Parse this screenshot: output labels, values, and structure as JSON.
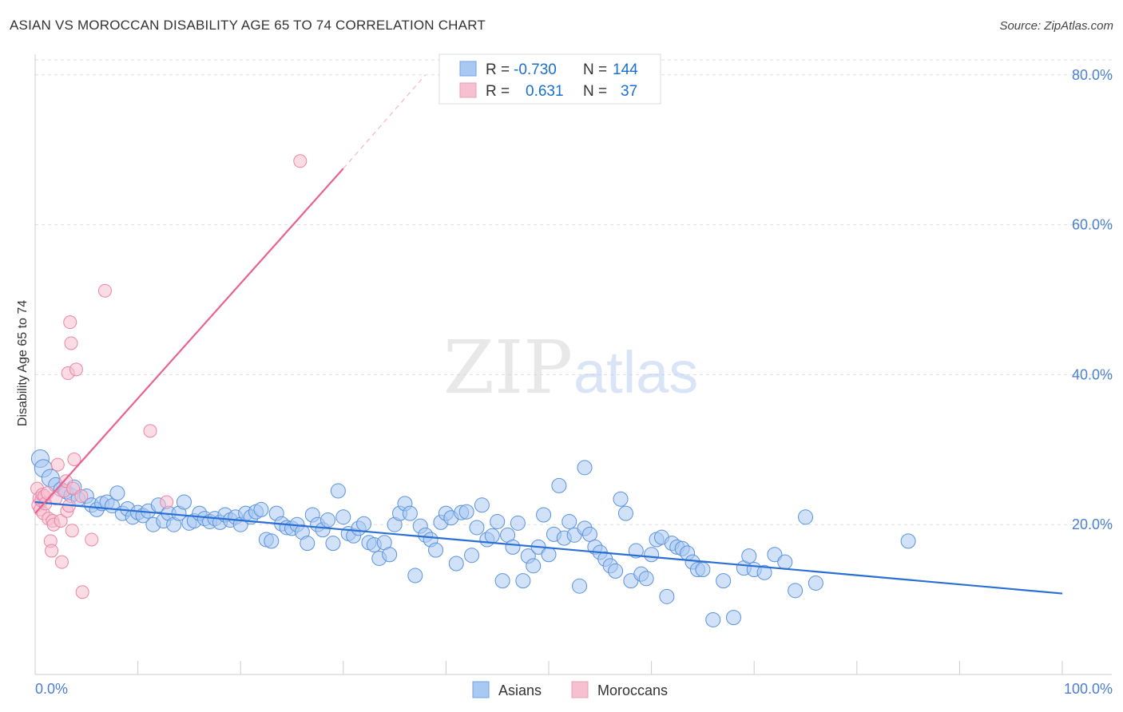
{
  "title": "ASIAN VS MOROCCAN DISABILITY AGE 65 TO 74 CORRELATION CHART",
  "source": "Source: ZipAtlas.com",
  "watermark": {
    "zip": "ZIP",
    "atlas": "atlas"
  },
  "legend_box": {
    "rows": [
      {
        "r_label": "R =",
        "r_value": "-0.730",
        "n_label": "N =",
        "n_value": "144",
        "color": "#6fa3e8"
      },
      {
        "r_label": "R =",
        "r_value": "0.631",
        "n_label": "N =",
        "n_value": "37",
        "color": "#f09bb5"
      }
    ]
  },
  "bottom_legend": [
    {
      "label": "Asians",
      "color": "#6fa3e8"
    },
    {
      "label": "Moroccans",
      "color": "#f09bb5"
    }
  ],
  "colors": {
    "asian_fill": "#a9c8f2",
    "asian_stroke": "#5b93dd",
    "asian_line": "#2a6fd4",
    "moroccan_fill": "#f7c0d0",
    "moroccan_stroke": "#ea86a6",
    "moroccan_line": "#e8638f",
    "grid": "#dddddd",
    "axis_label": "#4a7fd1"
  },
  "chart_data": {
    "type": "scatter",
    "title": "ASIAN VS MOROCCAN DISABILITY AGE 65 TO 74 CORRELATION CHART",
    "xlabel": "",
    "ylabel": "Disability Age 65 to 74",
    "xlim": [
      0,
      100
    ],
    "ylim": [
      0,
      82
    ],
    "x_tick_labels": [
      "0.0%",
      "100.0%"
    ],
    "y_ticks": [
      20,
      40,
      60,
      80
    ],
    "y_tick_labels": [
      "20.0%",
      "40.0%",
      "60.0%",
      "80.0%"
    ],
    "grid": true,
    "legend_position": "top-center",
    "series": [
      {
        "name": "Asians",
        "R": -0.73,
        "N": 144,
        "trend": {
          "x": [
            0,
            100
          ],
          "y": [
            23.0,
            10.8
          ]
        },
        "points": [
          [
            0.5,
            28.8
          ],
          [
            0.8,
            27.5
          ],
          [
            1.5,
            26.2
          ],
          [
            2.0,
            25.3
          ],
          [
            2.5,
            24.7
          ],
          [
            3.0,
            24.4
          ],
          [
            3.5,
            23.9
          ],
          [
            4.2,
            23.4
          ],
          [
            5.0,
            23.8
          ],
          [
            5.5,
            22.6
          ],
          [
            6.0,
            22.0
          ],
          [
            6.5,
            22.8
          ],
          [
            7.0,
            23.0
          ],
          [
            7.5,
            22.5
          ],
          [
            8.0,
            24.2
          ],
          [
            8.5,
            21.5
          ],
          [
            9.0,
            22.1
          ],
          [
            9.5,
            21.0
          ],
          [
            10.0,
            21.6
          ],
          [
            10.5,
            21.2
          ],
          [
            11.0,
            21.8
          ],
          [
            11.5,
            20.0
          ],
          [
            12.0,
            22.6
          ],
          [
            12.5,
            20.5
          ],
          [
            13.0,
            21.5
          ],
          [
            13.5,
            20.0
          ],
          [
            14.0,
            21.5
          ],
          [
            14.5,
            23.0
          ],
          [
            15.0,
            20.2
          ],
          [
            15.5,
            20.5
          ],
          [
            16.0,
            21.5
          ],
          [
            16.5,
            20.8
          ],
          [
            17.0,
            20.4
          ],
          [
            17.5,
            20.8
          ],
          [
            18.0,
            20.3
          ],
          [
            18.5,
            21.3
          ],
          [
            19.0,
            20.6
          ],
          [
            19.5,
            21.0
          ],
          [
            20.0,
            20.0
          ],
          [
            20.5,
            21.5
          ],
          [
            21.0,
            21.0
          ],
          [
            21.5,
            21.7
          ],
          [
            22.0,
            22.0
          ],
          [
            22.5,
            18.0
          ],
          [
            23.0,
            17.8
          ],
          [
            23.5,
            21.5
          ],
          [
            24.0,
            20.1
          ],
          [
            24.5,
            19.6
          ],
          [
            25.0,
            19.5
          ],
          [
            25.5,
            20.0
          ],
          [
            26.0,
            19.0
          ],
          [
            26.5,
            17.5
          ],
          [
            27.0,
            21.3
          ],
          [
            27.5,
            20.0
          ],
          [
            28.0,
            19.3
          ],
          [
            28.5,
            20.6
          ],
          [
            29.0,
            17.5
          ],
          [
            29.5,
            24.5
          ],
          [
            30.0,
            21.0
          ],
          [
            30.5,
            18.8
          ],
          [
            31.0,
            18.5
          ],
          [
            31.5,
            19.5
          ],
          [
            32.0,
            20.1
          ],
          [
            32.5,
            17.6
          ],
          [
            33.0,
            17.3
          ],
          [
            33.5,
            15.5
          ],
          [
            34.0,
            17.6
          ],
          [
            34.5,
            16.0
          ],
          [
            35.0,
            20.0
          ],
          [
            35.5,
            21.5
          ],
          [
            36.0,
            22.8
          ],
          [
            36.5,
            21.5
          ],
          [
            37.0,
            13.2
          ],
          [
            37.5,
            19.8
          ],
          [
            38.0,
            18.6
          ],
          [
            38.5,
            18.0
          ],
          [
            39.0,
            16.6
          ],
          [
            39.5,
            20.3
          ],
          [
            40.0,
            21.5
          ],
          [
            40.5,
            20.9
          ],
          [
            41.0,
            14.8
          ],
          [
            41.5,
            21.6
          ],
          [
            42.0,
            21.7
          ],
          [
            42.5,
            15.9
          ],
          [
            43.0,
            19.6
          ],
          [
            43.5,
            22.6
          ],
          [
            44.0,
            18.0
          ],
          [
            44.5,
            18.5
          ],
          [
            45.0,
            20.4
          ],
          [
            45.5,
            12.5
          ],
          [
            46.0,
            18.6
          ],
          [
            46.5,
            17.0
          ],
          [
            47.0,
            20.2
          ],
          [
            47.5,
            12.5
          ],
          [
            48.0,
            15.8
          ],
          [
            48.5,
            14.5
          ],
          [
            49.0,
            17.0
          ],
          [
            49.5,
            21.3
          ],
          [
            50.0,
            16.0
          ],
          [
            50.5,
            18.7
          ],
          [
            51.0,
            25.2
          ],
          [
            51.5,
            18.2
          ],
          [
            52.0,
            20.4
          ],
          [
            52.5,
            18.6
          ],
          [
            53.0,
            11.8
          ],
          [
            53.5,
            19.5
          ],
          [
            54.0,
            18.7
          ],
          [
            54.5,
            17.0
          ],
          [
            55.0,
            16.3
          ],
          [
            55.5,
            15.4
          ],
          [
            56.0,
            14.5
          ],
          [
            56.5,
            13.8
          ],
          [
            57.0,
            23.4
          ],
          [
            57.5,
            21.5
          ],
          [
            58.0,
            12.5
          ],
          [
            58.5,
            16.5
          ],
          [
            59.0,
            13.4
          ],
          [
            59.5,
            12.8
          ],
          [
            60.0,
            16.0
          ],
          [
            60.5,
            18.0
          ],
          [
            61.0,
            18.3
          ],
          [
            61.5,
            10.4
          ],
          [
            62.0,
            17.5
          ],
          [
            62.5,
            17.0
          ],
          [
            63.0,
            16.8
          ],
          [
            63.5,
            16.2
          ],
          [
            64.0,
            15.0
          ],
          [
            64.5,
            14.0
          ],
          [
            65.0,
            14.0
          ],
          [
            66.0,
            7.3
          ],
          [
            67.0,
            12.5
          ],
          [
            68.0,
            7.6
          ],
          [
            69.0,
            14.2
          ],
          [
            69.5,
            15.8
          ],
          [
            70.0,
            14.0
          ],
          [
            71.0,
            13.6
          ],
          [
            72.0,
            16.0
          ],
          [
            73.0,
            15.0
          ],
          [
            74.0,
            11.2
          ],
          [
            75.0,
            21.0
          ],
          [
            76.0,
            12.2
          ],
          [
            85.0,
            17.8
          ],
          [
            53.5,
            27.6
          ],
          [
            3.8,
            25.0
          ]
        ]
      },
      {
        "name": "Moroccans",
        "R": 0.631,
        "N": 37,
        "trend": {
          "x": [
            0,
            30
          ],
          "y": [
            21.5,
            67.5
          ],
          "dashed_extension": {
            "x": [
              30,
              38
            ],
            "y": [
              67.5,
              80.0
            ]
          }
        },
        "points": [
          [
            0.2,
            24.8
          ],
          [
            0.3,
            22.6
          ],
          [
            0.4,
            23.5
          ],
          [
            0.5,
            22.0
          ],
          [
            0.6,
            23.2
          ],
          [
            0.7,
            24.0
          ],
          [
            0.8,
            21.5
          ],
          [
            0.9,
            23.8
          ],
          [
            1.0,
            22.8
          ],
          [
            1.2,
            24.2
          ],
          [
            1.3,
            20.8
          ],
          [
            1.5,
            17.8
          ],
          [
            1.6,
            16.5
          ],
          [
            1.7,
            20.5
          ],
          [
            1.8,
            20.0
          ],
          [
            2.0,
            23.5
          ],
          [
            2.2,
            28.0
          ],
          [
            2.5,
            20.5
          ],
          [
            2.6,
            15.0
          ],
          [
            2.8,
            24.5
          ],
          [
            3.0,
            25.8
          ],
          [
            3.1,
            21.8
          ],
          [
            3.2,
            40.2
          ],
          [
            3.3,
            22.5
          ],
          [
            3.4,
            47.0
          ],
          [
            3.5,
            44.2
          ],
          [
            3.6,
            19.2
          ],
          [
            3.7,
            24.8
          ],
          [
            3.8,
            28.7
          ],
          [
            4.0,
            40.7
          ],
          [
            4.5,
            23.8
          ],
          [
            4.6,
            11.0
          ],
          [
            5.5,
            18.0
          ],
          [
            6.8,
            51.2
          ],
          [
            11.2,
            32.5
          ],
          [
            12.8,
            23.0
          ],
          [
            25.8,
            68.5
          ]
        ]
      }
    ]
  }
}
